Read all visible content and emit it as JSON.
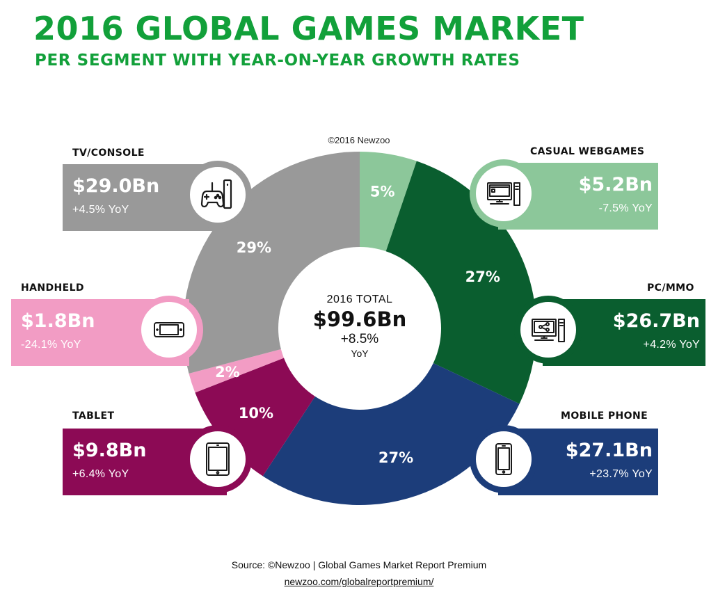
{
  "header": {
    "title": "2016 GLOBAL GAMES MARKET",
    "subtitle": "PER SEGMENT WITH YEAR-ON-YEAR GROWTH RATES",
    "copyright": "©2016 Newzoo"
  },
  "center": {
    "label": "2016 TOTAL",
    "value": "$99.6Bn",
    "growth": "+8.5%",
    "yoy": "YoY"
  },
  "footer": {
    "source": "Source: ©Newzoo | Global Games Market Report Premium",
    "url": "newzoo.com/globalreportpremium/"
  },
  "colors": {
    "title": "#12a03a",
    "casual_webgames": "#8cc79a",
    "pc_mmo": "#0a5e2f",
    "mobile_phone": "#1c3d7a",
    "tablet": "#8c0a55",
    "handheld": "#f29cc4",
    "tv_console": "#999999"
  },
  "segments": {
    "tv_console": {
      "name": "TV/CONSOLE",
      "value": "$29.0Bn",
      "yoy": "+4.5% YoY",
      "share_label": "29%",
      "icon": "gamepad-icon"
    },
    "handheld": {
      "name": "HANDHELD",
      "value": "$1.8Bn",
      "yoy": "-24.1% YoY",
      "share_label": "2%",
      "icon": "handheld-console-icon"
    },
    "tablet": {
      "name": "TABLET",
      "value": "$9.8Bn",
      "yoy": "+6.4% YoY",
      "share_label": "10%",
      "icon": "tablet-icon"
    },
    "casual_webgames": {
      "name": "CASUAL WEBGAMES",
      "value": "$5.2Bn",
      "yoy": "-7.5% YoY",
      "share_label": "5%",
      "icon": "desktop-computer-icon"
    },
    "pc_mmo": {
      "name": "PC/MMO",
      "value": "$26.7Bn",
      "yoy": "+4.2% YoY",
      "share_label": "27%",
      "icon": "networked-computer-icon"
    },
    "mobile_phone": {
      "name": "MOBILE PHONE",
      "value": "$27.1Bn",
      "yoy": "+23.7% YoY",
      "share_label": "27%",
      "icon": "smartphone-icon"
    }
  },
  "chart_data": {
    "type": "pie",
    "title": "2016 GLOBAL GAMES MARKET",
    "subtitle": "PER SEGMENT WITH YEAR-ON-YEAR GROWTH RATES",
    "unit": "$Bn",
    "total": 99.6,
    "total_growth_pct": 8.5,
    "slices": [
      {
        "name": "CASUAL WEBGAMES",
        "value": 5.2,
        "share_pct": 5,
        "yoy_pct": -7.5
      },
      {
        "name": "PC/MMO",
        "value": 26.7,
        "share_pct": 27,
        "yoy_pct": 4.2
      },
      {
        "name": "MOBILE PHONE",
        "value": 27.1,
        "share_pct": 27,
        "yoy_pct": 23.7
      },
      {
        "name": "TABLET",
        "value": 9.8,
        "share_pct": 10,
        "yoy_pct": 6.4
      },
      {
        "name": "HANDHELD",
        "value": 1.8,
        "share_pct": 2,
        "yoy_pct": -24.1
      },
      {
        "name": "TV/CONSOLE",
        "value": 29.0,
        "share_pct": 29,
        "yoy_pct": 4.5
      }
    ]
  }
}
